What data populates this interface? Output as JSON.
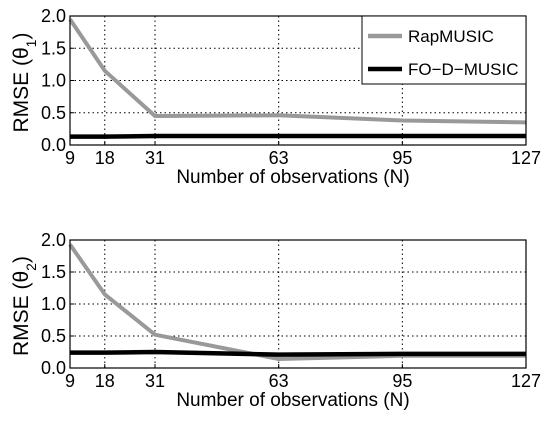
{
  "chart_data": [
    {
      "type": "line",
      "x": [
        9,
        18,
        31,
        63,
        95,
        127
      ],
      "xlabel": "Number of observations (N)",
      "ylabel_prefix": "RMSE (",
      "ylabel_symbol": "θ",
      "ylabel_sub": "1",
      "ylabel_suffix": ")",
      "xlim": [
        9,
        127
      ],
      "ylim": [
        0,
        2.0
      ],
      "xticks": [
        "9",
        "18",
        "31",
        "63",
        "95",
        "127"
      ],
      "yticks": [
        "0.0",
        "0.5",
        "1.0",
        "1.5",
        "2.0"
      ],
      "grid": true,
      "legend_position": "top-right",
      "series": [
        {
          "name": "RapMUSIC",
          "color": "#999999",
          "values": [
            1.95,
            1.15,
            0.45,
            0.46,
            0.38,
            0.35
          ]
        },
        {
          "name": "FO−D−MUSIC",
          "color": "#000000",
          "values": [
            0.13,
            0.13,
            0.14,
            0.14,
            0.14,
            0.14
          ]
        }
      ]
    },
    {
      "type": "line",
      "x": [
        9,
        18,
        31,
        63,
        95,
        127
      ],
      "xlabel": "Number of observations (N)",
      "ylabel_prefix": "RMSE (",
      "ylabel_symbol": "θ",
      "ylabel_sub": "2",
      "ylabel_suffix": ")",
      "xlim": [
        9,
        127
      ],
      "ylim": [
        0,
        2.0
      ],
      "xticks": [
        "9",
        "18",
        "31",
        "63",
        "95",
        "127"
      ],
      "yticks": [
        "0.0",
        "0.5",
        "1.0",
        "1.5",
        "2.0"
      ],
      "grid": true,
      "series": [
        {
          "color": "#999999",
          "values": [
            1.93,
            1.15,
            0.52,
            0.14,
            0.19,
            0.19
          ]
        },
        {
          "color": "#000000",
          "values": [
            0.24,
            0.24,
            0.25,
            0.21,
            0.22,
            0.22
          ]
        }
      ]
    }
  ]
}
